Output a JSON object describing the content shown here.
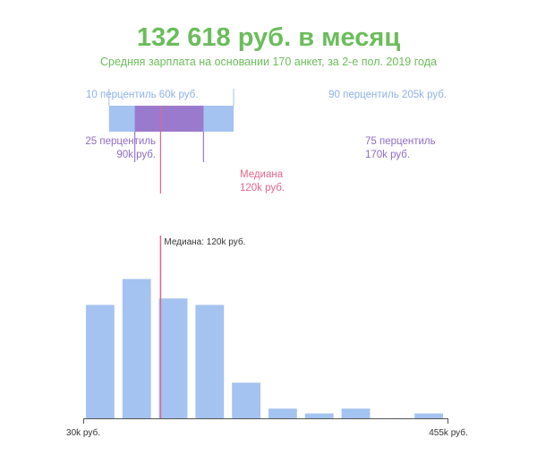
{
  "header": {
    "title": "132 618 руб. в месяц",
    "subtitle": "Средняя зарплата на основании 170 анкет, за 2-е пол. 2019 года"
  },
  "colors": {
    "title": "#6bbd5b",
    "outer_band": "#a4c3f0",
    "inner_band": "#9a7acd",
    "median": "#e2668c",
    "bars": "#a4c3f0"
  },
  "range": {
    "min": 30,
    "max": 455,
    "p10": 60,
    "p25": 90,
    "median": 120,
    "p75": 170,
    "p90": 205,
    "p10_label": "10 перцентиль 60k руб.",
    "p90_label": "90 перцентиль 205k руб.",
    "p25_label_line1": "25 перцентиль",
    "p25_label_line2": "90k руб.",
    "p75_label_line1": "75 перцентиль",
    "p75_label_line2": "170k руб.",
    "median_label_line1": "Медиана",
    "median_label_line2": "120k руб."
  },
  "chart_data": {
    "type": "bar",
    "xlim": [
      30,
      455
    ],
    "bin_width": 42.5,
    "values": [
      35,
      43,
      37,
      35,
      11,
      3,
      1.5,
      3,
      0,
      1.5
    ],
    "median": 120,
    "median_label": "Медиана: 120k руб.",
    "x_tick_labels": [
      "30k руб.",
      "455k руб."
    ]
  }
}
